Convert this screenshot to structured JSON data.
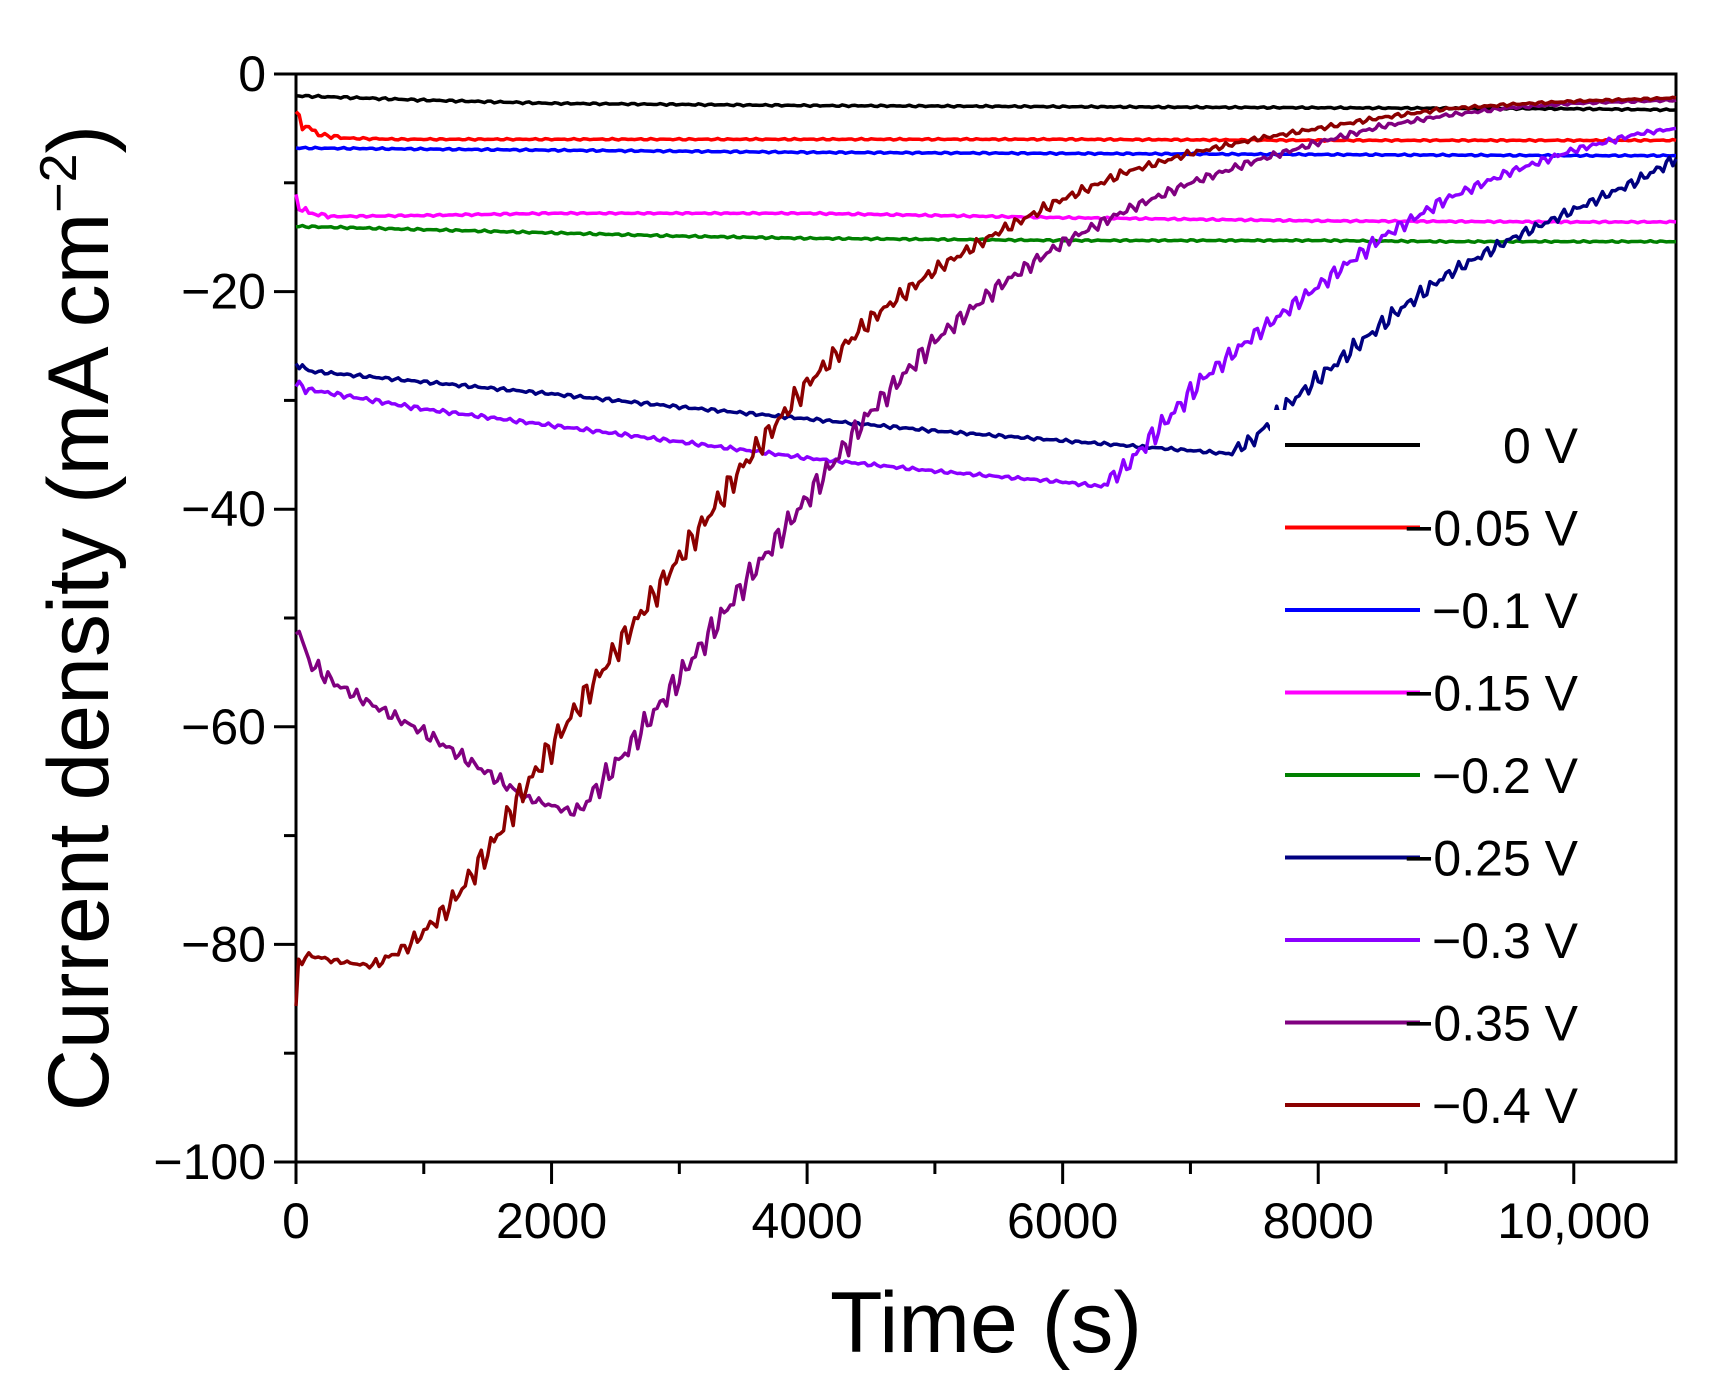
{
  "chart_data": {
    "type": "line",
    "xlabel": "Time (s)",
    "ylabel": "Current density (mA cm",
    "ylabel_sup": "−2",
    "ylabel_close": ")",
    "xlim": [
      0,
      10800
    ],
    "ylim": [
      -100,
      0
    ],
    "x_ticks": [
      0,
      2000,
      4000,
      6000,
      8000,
      10000
    ],
    "x_tick_labels": [
      "0",
      "2000",
      "4000",
      "6000",
      "8000",
      "10,000"
    ],
    "y_ticks": [
      0,
      -20,
      -40,
      -60,
      -80,
      -100
    ],
    "y_tick_labels": [
      "0",
      "−20",
      "−40",
      "−60",
      "−80",
      "−100"
    ],
    "grid": false,
    "legend_position": "right",
    "series": [
      {
        "name": "0 V",
        "color": "#000000",
        "x": [
          0,
          500,
          1000,
          2000,
          3000,
          4000,
          6000,
          8000,
          10000,
          10800
        ],
        "y": [
          -2.0,
          -2.2,
          -2.4,
          -2.7,
          -2.8,
          -2.9,
          -3.0,
          -3.1,
          -3.2,
          -3.3
        ]
      },
      {
        "name": "−0.05 V",
        "color": "#ff0000",
        "x": [
          0,
          100,
          200,
          400,
          800,
          2000,
          4000,
          6000,
          8000,
          10000,
          10800
        ],
        "y": [
          -4.0,
          -5.0,
          -5.6,
          -5.9,
          -6.0,
          -6.0,
          -6.0,
          -6.0,
          -6.1,
          -6.1,
          -6.1
        ]
      },
      {
        "name": "−0.1 V",
        "color": "#0000ff",
        "x": [
          0,
          1000,
          2000,
          4000,
          6000,
          8000,
          10000,
          10800
        ],
        "y": [
          -6.8,
          -6.9,
          -7.0,
          -7.2,
          -7.3,
          -7.4,
          -7.5,
          -7.5
        ]
      },
      {
        "name": "−0.15 V",
        "color": "#ff00ff",
        "x": [
          0,
          100,
          300,
          1000,
          2000,
          4000,
          6000,
          8000,
          10000,
          10800
        ],
        "y": [
          -11.8,
          -12.8,
          -13.1,
          -13.0,
          -12.8,
          -12.8,
          -13.2,
          -13.5,
          -13.6,
          -13.6
        ]
      },
      {
        "name": "−0.2 V",
        "color": "#008000",
        "x": [
          0,
          1000,
          2000,
          3000,
          4000,
          5000,
          6000,
          7000,
          8000,
          9000,
          10000,
          10800
        ],
        "y": [
          -14.0,
          -14.3,
          -14.6,
          -14.9,
          -15.1,
          -15.2,
          -15.3,
          -15.3,
          -15.3,
          -15.4,
          -15.4,
          -15.4
        ]
      },
      {
        "name": "−0.25 V",
        "color": "#000080",
        "x": [
          0,
          100,
          1000,
          2000,
          3000,
          4000,
          5000,
          6000,
          7000,
          7300,
          7500,
          7800,
          8200,
          8600,
          9000,
          9500,
          10000,
          10500,
          10800
        ],
        "y": [
          -26.5,
          -27.3,
          -28.3,
          -29.4,
          -30.6,
          -31.7,
          -32.8,
          -33.7,
          -34.6,
          -34.9,
          -33.5,
          -30.0,
          -26.0,
          -22.0,
          -18.5,
          -15.2,
          -12.5,
          -9.8,
          -7.8
        ]
      },
      {
        "name": "−0.3 V",
        "color": "#8b00ff",
        "x": [
          0,
          100,
          1000,
          2000,
          3000,
          4000,
          5000,
          6000,
          6300,
          6500,
          6800,
          7100,
          7500,
          8000,
          8500,
          9000,
          9500,
          10000,
          10500,
          10800
        ],
        "y": [
          -28.5,
          -29.0,
          -30.8,
          -32.3,
          -33.8,
          -35.3,
          -36.5,
          -37.5,
          -37.9,
          -36.0,
          -32.0,
          -28.0,
          -24.0,
          -19.5,
          -15.0,
          -11.5,
          -9.0,
          -7.0,
          -5.5,
          -5.0
        ]
      },
      {
        "name": "−0.35 V",
        "color": "#800080",
        "x": [
          0,
          100,
          300,
          600,
          1000,
          1400,
          1800,
          2200,
          2600,
          3000,
          3500,
          4000,
          4500,
          5000,
          5500,
          6000,
          6500,
          7000,
          7500,
          8000,
          8500,
          9000,
          9500,
          10000,
          10800
        ],
        "y": [
          -50.5,
          -54.0,
          -56.0,
          -58.0,
          -60.5,
          -63.5,
          -66.5,
          -68.0,
          -62.0,
          -55.5,
          -47.0,
          -39.0,
          -31.0,
          -24.5,
          -19.5,
          -15.5,
          -12.5,
          -10.0,
          -8.0,
          -6.3,
          -4.8,
          -3.8,
          -3.1,
          -2.7,
          -2.4
        ]
      },
      {
        "name": "−0.4 V",
        "color": "#8b0000",
        "x": [
          0,
          20,
          100,
          300,
          600,
          900,
          1200,
          1500,
          1800,
          2100,
          2500,
          3000,
          3500,
          4000,
          4500,
          5000,
          5500,
          6000,
          6500,
          7000,
          7500,
          8000,
          8500,
          9000,
          9500,
          10000,
          10800
        ],
        "y": [
          -86.5,
          -81.5,
          -81.0,
          -81.5,
          -82.0,
          -80.0,
          -76.5,
          -71.5,
          -65.5,
          -60.0,
          -53.0,
          -44.5,
          -36.0,
          -28.5,
          -22.5,
          -18.0,
          -14.5,
          -11.5,
          -9.0,
          -7.3,
          -6.0,
          -5.0,
          -4.0,
          -3.2,
          -2.8,
          -2.5,
          -2.2
        ]
      }
    ]
  }
}
